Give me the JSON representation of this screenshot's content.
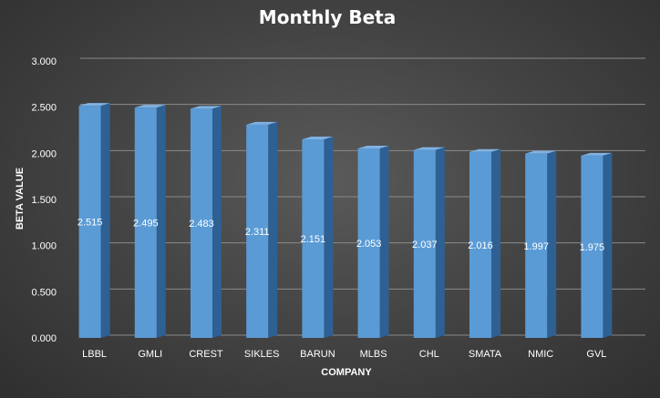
{
  "chart_data": {
    "type": "bar",
    "title": "Monthly Beta",
    "xlabel": "COMPANY",
    "ylabel": "BETA VALUE",
    "categories": [
      "LBBL",
      "GMLI",
      "CREST",
      "SIKLES",
      "BARUN",
      "MLBS",
      "CHL",
      "SMATA",
      "NMIC",
      "GVL"
    ],
    "values": [
      2.515,
      2.495,
      2.483,
      2.311,
      2.151,
      2.053,
      2.037,
      2.016,
      1.997,
      1.975
    ],
    "data_labels": [
      "2.515",
      "2.495",
      "2.483",
      "2.311",
      "2.151",
      "2.053",
      "2.037",
      "2.016",
      "1.997",
      "1.975"
    ],
    "ylim": [
      0,
      3
    ],
    "yticks": [
      "0.000",
      "0.500",
      "1.000",
      "1.500",
      "2.000",
      "2.500",
      "3.000"
    ],
    "grid": true,
    "legend": "none",
    "colors": {
      "bar_front": "#5b9bd5",
      "bar_side": "#2e6094",
      "bar_top": "#7fb2e3",
      "background": "#404040",
      "gridline": "#8a8a8a",
      "text": "#ffffff"
    }
  }
}
